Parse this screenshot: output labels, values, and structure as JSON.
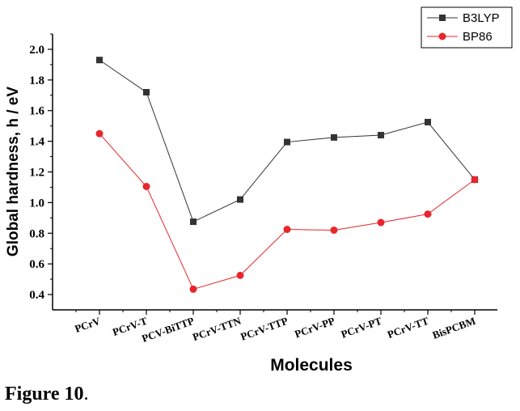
{
  "chart_data": {
    "type": "line",
    "title": "",
    "xlabel": "Molecules",
    "ylabel": "Global hardness, h / eV",
    "categories": [
      "PCrV",
      "PCrV-T",
      "PCV-BiTTP",
      "PCrV-TTN",
      "PCrV-TTP",
      "PCrV-PP",
      "PCrV-PT",
      "PCrV-TT",
      "BisPCBM"
    ],
    "ylim": [
      0.3,
      2.1
    ],
    "yticks": [
      0.4,
      0.6,
      0.8,
      1.0,
      1.2,
      1.4,
      1.6,
      1.8,
      2.0
    ],
    "ytick_labels": [
      "0.4",
      "0.6",
      "0.8",
      "1.0",
      "1.2",
      "1.4",
      "1.6",
      "1.8",
      "2.0"
    ],
    "legend_position": "top-right",
    "grid": false,
    "series": [
      {
        "name": "B3LYP",
        "color": "#333333",
        "marker": "square",
        "values": [
          1.93,
          1.72,
          0.875,
          1.02,
          1.395,
          1.425,
          1.44,
          1.525,
          1.15
        ]
      },
      {
        "name": "BP86",
        "color": "#e8262b",
        "marker": "circle",
        "values": [
          1.45,
          1.105,
          0.435,
          0.525,
          0.825,
          0.82,
          0.87,
          0.925,
          1.15
        ]
      }
    ]
  },
  "caption": {
    "label": "Figure 10",
    "suffix": "."
  }
}
